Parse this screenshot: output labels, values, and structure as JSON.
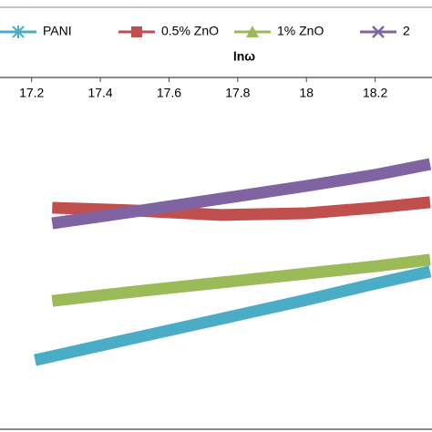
{
  "chart_data": {
    "type": "line",
    "x_label": "lnω",
    "xlim": [
      17.1,
      18.4
    ],
    "xticks": [
      17.2,
      17.4,
      17.6,
      17.8,
      18,
      18.2
    ],
    "ylim": [
      0,
      10
    ],
    "series": [
      {
        "name": "PANI",
        "color": "#4bacc6",
        "marker": "star",
        "x": [
          17.21,
          17.5,
          17.75,
          18.0,
          18.2,
          18.36
        ],
        "values": [
          1.97,
          2.61,
          3.16,
          3.71,
          4.18,
          4.53
        ]
      },
      {
        "name": "0.5% ZnO",
        "color": "#c0504d",
        "marker": "square",
        "x": [
          17.26,
          17.5,
          17.75,
          18.0,
          18.2,
          18.36
        ],
        "values": [
          6.37,
          6.29,
          6.16,
          6.21,
          6.37,
          6.53
        ]
      },
      {
        "name": "1% ZnO",
        "color": "#9bbb59",
        "marker": "triangle",
        "x": [
          17.26,
          17.5,
          17.75,
          18.0,
          18.2,
          18.36
        ],
        "values": [
          3.68,
          3.95,
          4.21,
          4.47,
          4.68,
          4.87
        ]
      },
      {
        "name": "2",
        "color": "#8064a2",
        "marker": "cross",
        "x": [
          17.26,
          17.5,
          17.75,
          18.0,
          18.2,
          18.36
        ],
        "values": [
          5.92,
          6.26,
          6.63,
          7.0,
          7.32,
          7.63
        ]
      }
    ]
  }
}
